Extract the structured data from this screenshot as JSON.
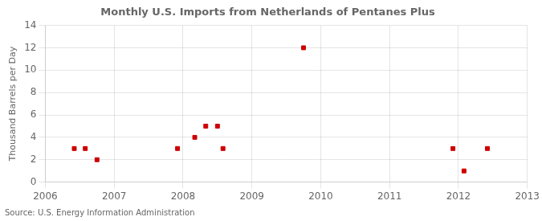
{
  "chart_data": {
    "type": "scatter",
    "title": "Monthly U.S. Imports from Netherlands of Pentanes Plus",
    "ylabel": "Thousand Barrels per Day",
    "annotations": [
      "Source: U.S. Energy Information Administration"
    ],
    "x": [
      2006.42,
      2006.58,
      2006.75,
      2007.92,
      2008.17,
      2008.33,
      2008.5,
      2008.58,
      2009.75,
      2011.92,
      2012.08,
      2012.42
    ],
    "values": [
      3,
      3,
      2,
      3,
      4,
      5,
      5,
      3,
      12,
      3,
      1,
      3
    ],
    "color": "#cc0000",
    "marker": "square",
    "xlim": [
      2006,
      2013
    ],
    "ylim": [
      0,
      14
    ],
    "xticks": [
      2006,
      2007,
      2008,
      2009,
      2010,
      2011,
      2012,
      2013
    ],
    "yticks": [
      0,
      2,
      4,
      6,
      8,
      10,
      12,
      14
    ],
    "grid": true
  }
}
